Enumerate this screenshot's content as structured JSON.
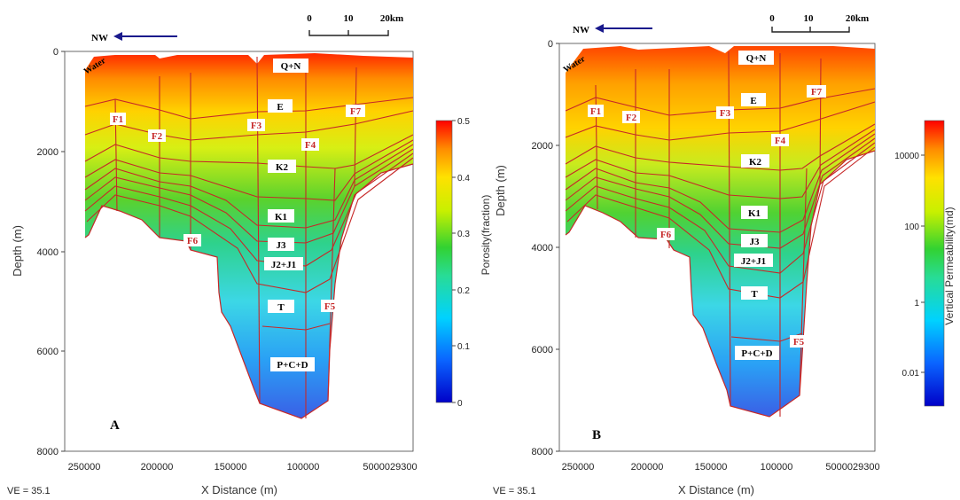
{
  "chart_data": [
    {
      "type": "heatmap",
      "panel_letter": "A",
      "xlabel": "X Distance (m)",
      "ylabel": "Depth (m)",
      "x_ticks": [
        "250000",
        "200000",
        "150000",
        "100000",
        "5000029300"
      ],
      "y_ticks": [
        "0",
        "2000",
        "4000",
        "6000",
        "8000"
      ],
      "xlim": [
        250000,
        29300
      ],
      "ylim": [
        0,
        8000
      ],
      "ve_text": "VE = 35.1",
      "orientation_label": "NW",
      "scale_ticks": [
        "0",
        "10",
        "20km"
      ],
      "water_label": "Water",
      "units": [
        "Q+N",
        "E",
        "K2",
        "K1",
        "J3",
        "J2+J1",
        "T",
        "P+C+D"
      ],
      "faults": [
        "F1",
        "F2",
        "F3",
        "F4",
        "F5",
        "F6",
        "F7"
      ],
      "colorbar": {
        "label": "Porosity(fraction)",
        "scale": "linear",
        "range": [
          0,
          0.5
        ],
        "ticks": [
          "0",
          "0.1",
          "0.2",
          "0.3",
          "0.4",
          "0.5"
        ]
      },
      "grid": false
    },
    {
      "type": "heatmap",
      "panel_letter": "B",
      "xlabel": "X Distance (m)",
      "ylabel": "Depth (m)",
      "x_ticks": [
        "250000",
        "200000",
        "150000",
        "100000",
        "5000029300"
      ],
      "y_ticks": [
        "0",
        "2000",
        "4000",
        "6000",
        "8000"
      ],
      "xlim": [
        250000,
        29300
      ],
      "ylim": [
        0,
        8000
      ],
      "ve_text": "VE = 35.1",
      "orientation_label": "NW",
      "scale_ticks": [
        "0",
        "10",
        "20km"
      ],
      "water_label": "Water",
      "units": [
        "Q+N",
        "E",
        "K2",
        "K1",
        "J3",
        "J2+J1",
        "T",
        "P+C+D"
      ],
      "faults": [
        "F1",
        "F2",
        "F3",
        "F4",
        "F5",
        "F6",
        "F7"
      ],
      "colorbar": {
        "label": "Vertical Permeability(md)",
        "scale": "log",
        "range": [
          0.001,
          100000
        ],
        "ticks": [
          "10000",
          "100",
          "1",
          "0.01"
        ]
      },
      "grid": false
    }
  ],
  "colors": {
    "colormap": [
      "#0000d0",
      "#00c8ff",
      "#28d228",
      "#ffff00",
      "#ff0000"
    ],
    "fault_line": "#c62828",
    "arrow": "#1a1a8c"
  }
}
